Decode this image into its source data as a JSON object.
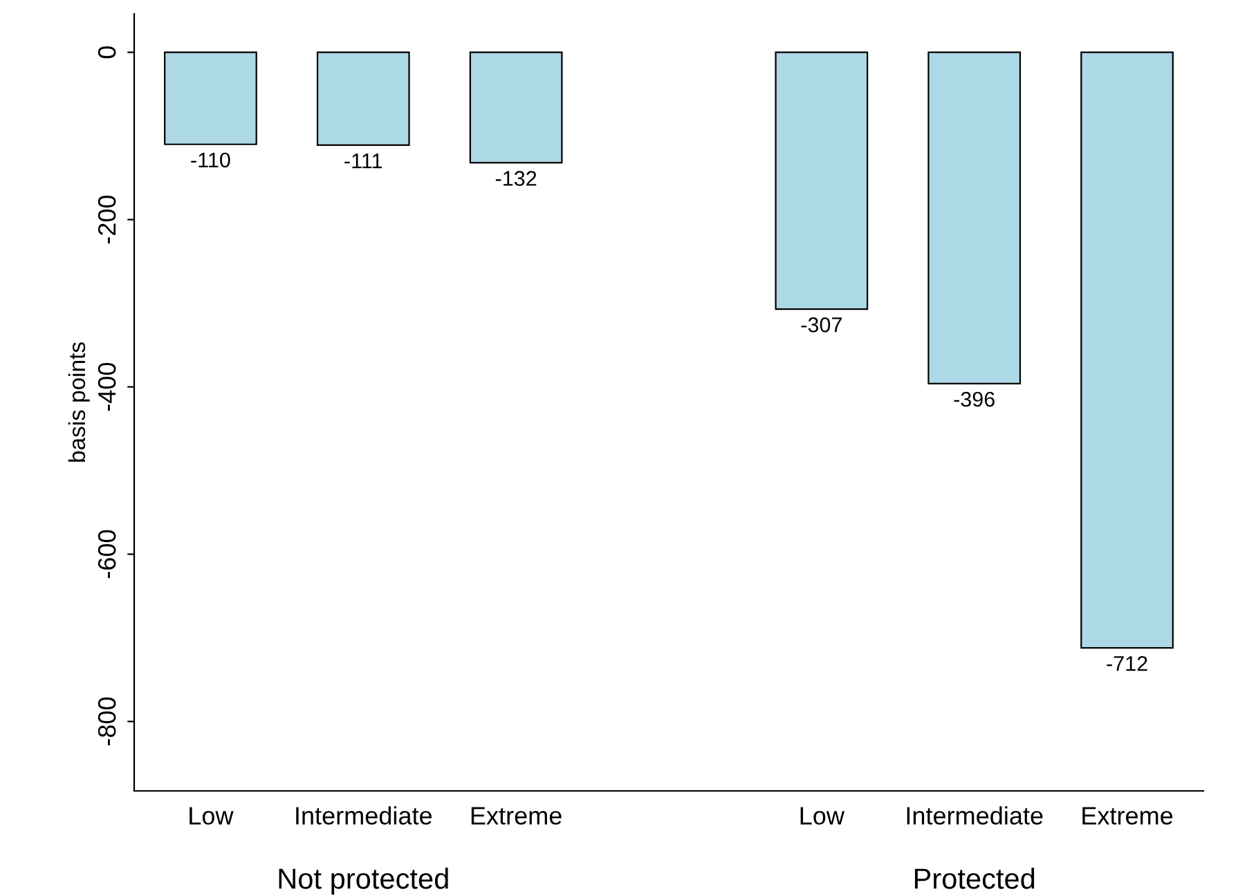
{
  "chart_data": {
    "type": "bar",
    "categories": [
      "Low",
      "Intermediate",
      "Extreme",
      null,
      "Low",
      "Intermediate",
      "Extreme"
    ],
    "values": [
      -110,
      -111,
      -132,
      null,
      -307,
      -396,
      -712
    ],
    "color": "#add8e6",
    "data_labels": true,
    "ylabel": "basis points",
    "ylim": [
      -883,
      46
    ],
    "yticks": [
      -800,
      -600,
      -400,
      -200,
      0
    ],
    "annotations": [
      "Not protected",
      "Protected"
    ],
    "grid": false,
    "legend": false
  }
}
